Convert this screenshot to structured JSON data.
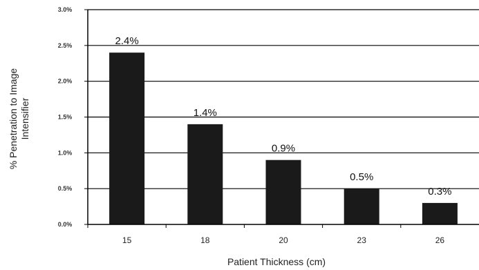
{
  "chart_data": {
    "type": "bar",
    "categories": [
      "15",
      "18",
      "20",
      "23",
      "26"
    ],
    "values": [
      2.4,
      1.4,
      0.9,
      0.5,
      0.3
    ],
    "data_labels": [
      "2.4%",
      "1.4%",
      "0.9%",
      "0.5%",
      "0.3%"
    ],
    "yticks": [
      "0.0%",
      "0.5%",
      "1.0%",
      "1.5%",
      "2.0%",
      "2.5%",
      "3.0%"
    ],
    "ylim": [
      0,
      3
    ],
    "xlabel": "Patient Thickness (cm)",
    "ylabel_line1": "% Penetration to Image",
    "ylabel_line2": "Intensifier",
    "bar_color": "#1a1a1a",
    "grid": true
  }
}
